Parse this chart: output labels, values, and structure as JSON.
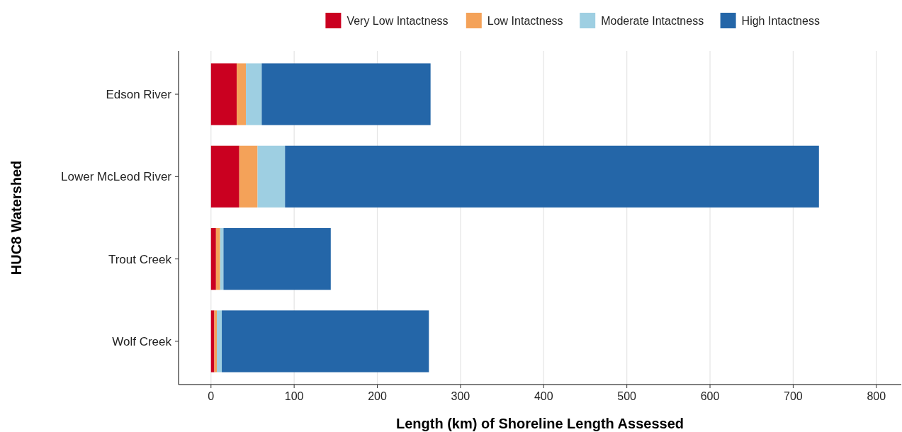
{
  "chart_data": {
    "type": "bar",
    "orientation": "horizontal",
    "stacked": true,
    "xlabel": "Length (km) of Shoreline Length Assessed",
    "ylabel": "HUC8 Watershed",
    "categories": [
      "Edson River",
      "Lower McLeod River",
      "Trout Creek",
      "Wolf Creek"
    ],
    "series": [
      {
        "name": "Very Low Intactness",
        "color": "#ca0020",
        "values": [
          31,
          34,
          6,
          4
        ]
      },
      {
        "name": "Low Intactness",
        "color": "#f4a259",
        "values": [
          11,
          22,
          5,
          3
        ]
      },
      {
        "name": "Moderate Intactness",
        "color": "#9ecfe2",
        "values": [
          19,
          33,
          4,
          6
        ]
      },
      {
        "name": "High Intactness",
        "color": "#2466a8",
        "values": [
          203,
          642,
          129,
          249
        ]
      }
    ],
    "xlim": [
      -39,
      830
    ],
    "xticks": [
      0,
      100,
      200,
      300,
      400,
      500,
      600,
      700,
      800
    ],
    "grid": "x",
    "legend": "top"
  }
}
